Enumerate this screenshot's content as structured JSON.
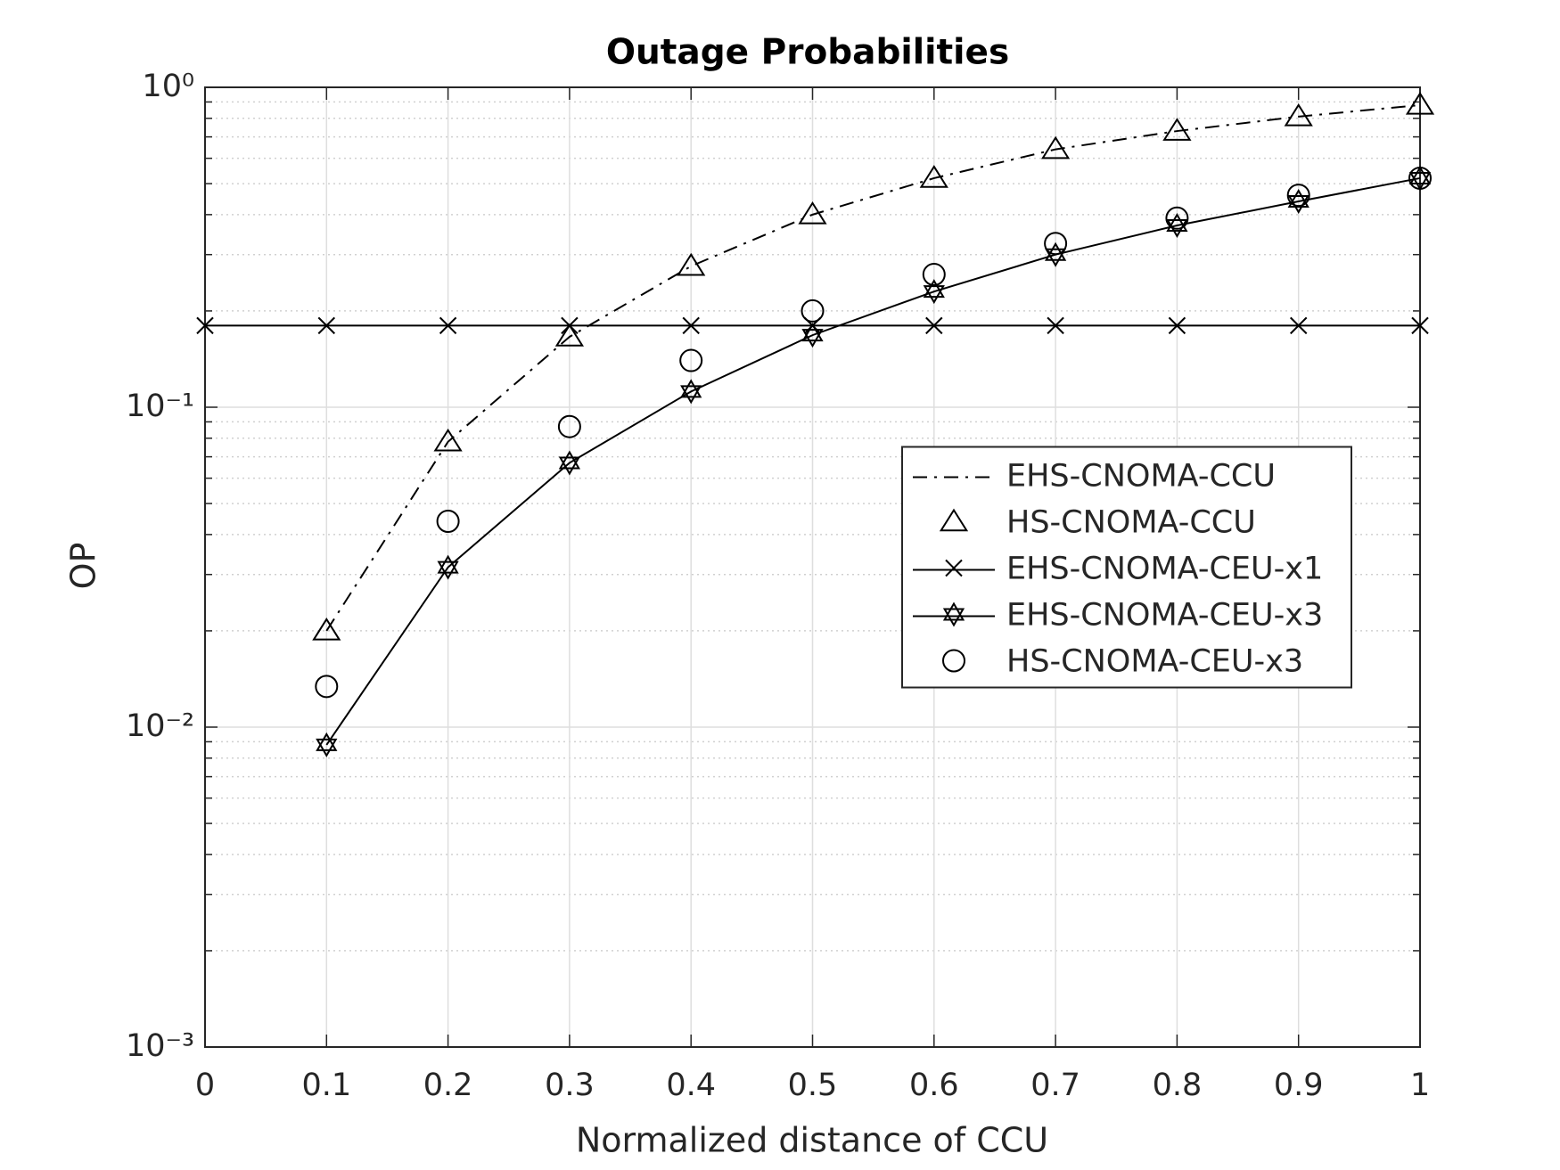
{
  "chart_data": {
    "type": "line",
    "title": "Outage Probabilities",
    "x_label": "Normalized distance of CCU",
    "y_label": "OP",
    "xlim": [
      0,
      1
    ],
    "xticks": [
      0,
      0.1,
      0.2,
      0.3,
      0.4,
      0.5,
      0.6,
      0.7,
      0.8,
      0.9,
      1
    ],
    "ylim": [
      0.001,
      1
    ],
    "log_y": true,
    "yticks": [
      {
        "value": 0.001,
        "label": "10⁻³"
      },
      {
        "value": 0.01,
        "label": "10⁻²"
      },
      {
        "value": 0.1,
        "label": "10⁻¹"
      },
      {
        "value": 1,
        "label": "10⁰"
      }
    ],
    "grid": true,
    "minor_grid": true,
    "legend": "east",
    "series": [
      {
        "name": "EHS-CNOMA-CCU",
        "color": "#000000",
        "line": "dashdot",
        "marker": "none",
        "x": [
          0.1,
          0.2,
          0.3,
          0.4,
          0.5,
          0.6,
          0.7,
          0.8,
          0.9,
          1
        ],
        "values": [
          0.02,
          0.078,
          0.166,
          0.276,
          0.4,
          0.52,
          0.64,
          0.73,
          0.81,
          0.88
        ]
      },
      {
        "name": "HS-CNOMA-CCU",
        "color": "#000000",
        "line": "none",
        "marker": "triangle",
        "x": [
          0.1,
          0.2,
          0.3,
          0.4,
          0.5,
          0.6,
          0.7,
          0.8,
          0.9,
          1
        ],
        "values": [
          0.02,
          0.078,
          0.166,
          0.276,
          0.4,
          0.52,
          0.64,
          0.73,
          0.81,
          0.88
        ]
      },
      {
        "name": "EHS-CNOMA-CEU-x1",
        "color": "#000000",
        "line": "solid",
        "marker": "x",
        "x": [
          0,
          0.1,
          0.2,
          0.3,
          0.4,
          0.5,
          0.6,
          0.7,
          0.8,
          0.9,
          1
        ],
        "values": [
          0.18,
          0.18,
          0.18,
          0.18,
          0.18,
          0.18,
          0.18,
          0.18,
          0.18,
          0.18,
          0.18
        ]
      },
      {
        "name": "EHS-CNOMA-CEU-x3",
        "color": "#000000",
        "line": "solid",
        "marker": "star",
        "x": [
          0.1,
          0.2,
          0.3,
          0.4,
          0.5,
          0.6,
          0.7,
          0.8,
          0.9,
          1
        ],
        "values": [
          0.0088,
          0.0316,
          0.067,
          0.112,
          0.168,
          0.23,
          0.3,
          0.37,
          0.44,
          0.52
        ]
      },
      {
        "name": "HS-CNOMA-CEU-x3",
        "color": "#000000",
        "line": "none",
        "marker": "circle",
        "x": [
          0.1,
          0.2,
          0.3,
          0.4,
          0.5,
          0.6,
          0.7,
          0.8,
          0.9,
          1
        ],
        "values": [
          0.0134,
          0.044,
          0.087,
          0.14,
          0.2,
          0.26,
          0.325,
          0.39,
          0.46,
          0.52
        ]
      }
    ]
  }
}
